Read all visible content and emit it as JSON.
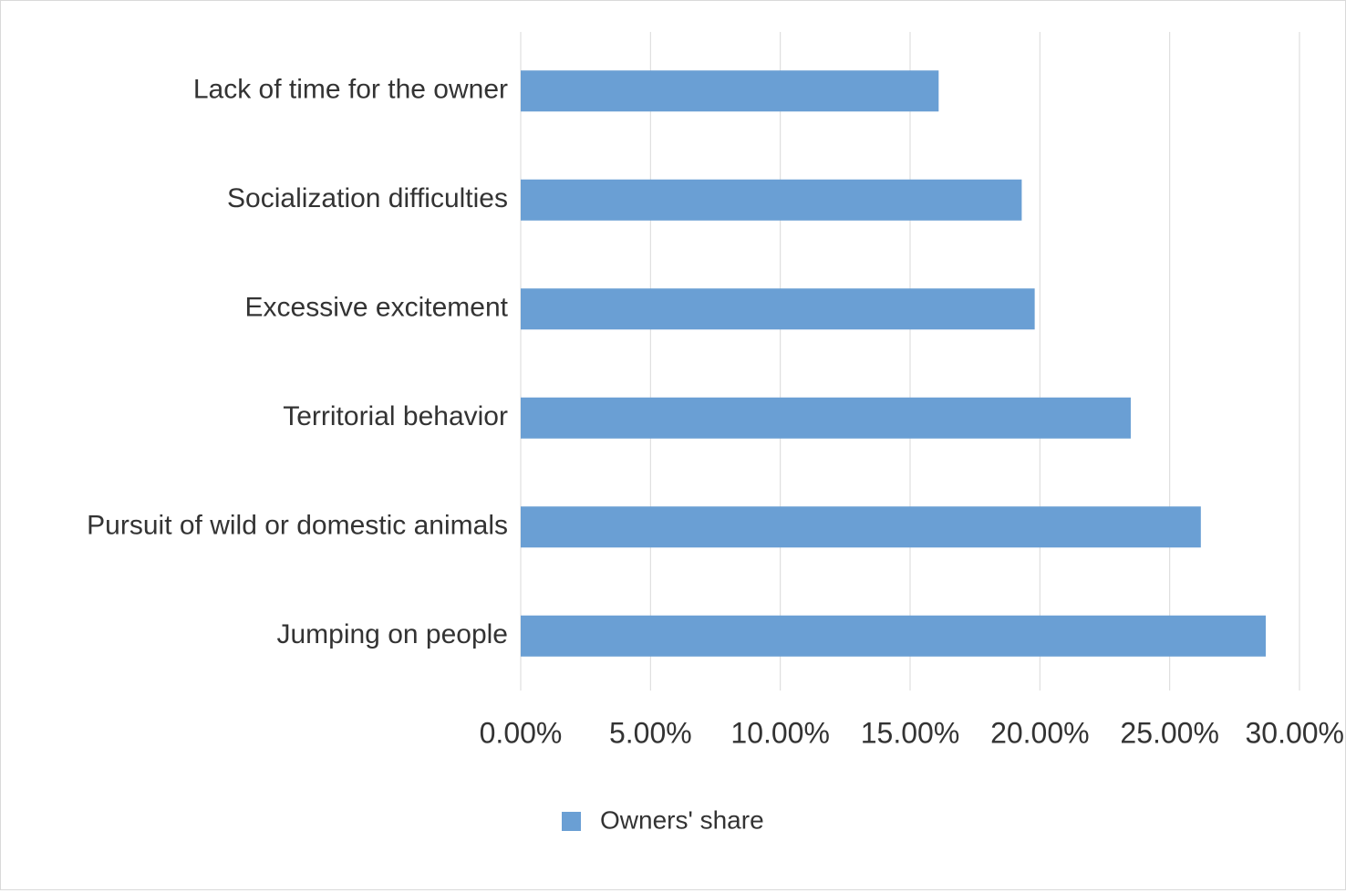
{
  "chart_data": {
    "type": "bar",
    "orientation": "horizontal",
    "categories": [
      "Lack of time for the owner",
      "Socialization difficulties",
      "Excessive excitement",
      "Territorial behavior",
      "Pursuit of wild or domestic animals",
      "Jumping on people"
    ],
    "series": [
      {
        "name": "Owners' share",
        "color": "#6a9fd4",
        "values": [
          16.1,
          19.3,
          19.8,
          23.5,
          26.2,
          28.7
        ]
      }
    ],
    "xlim": [
      0,
      30
    ],
    "xticks": [
      {
        "value": 0,
        "label": "0.00%"
      },
      {
        "value": 5,
        "label": "5.00%"
      },
      {
        "value": 10,
        "label": "10.00%"
      },
      {
        "value": 15,
        "label": "15.00%"
      },
      {
        "value": 20,
        "label": "20.00%"
      },
      {
        "value": 25,
        "label": "25.00%"
      },
      {
        "value": 30,
        "label": "30.00%"
      }
    ],
    "grid": true,
    "legend": "bottom"
  }
}
